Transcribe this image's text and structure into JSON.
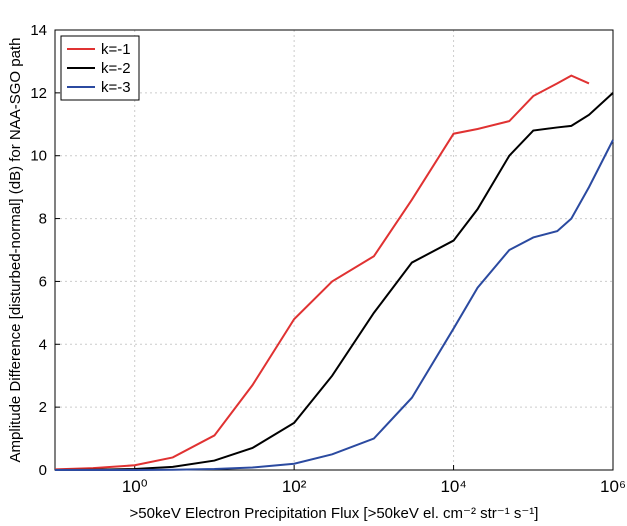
{
  "chart_data": {
    "type": "line",
    "xlabel": ">50keV Electron Precipitation Flux [>50keV el. cm⁻² str⁻¹ s⁻¹]",
    "ylabel": "Amplitude Difference [disturbed-normal] (dB) for NAA-SGO path",
    "x": [
      0.1,
      0.3,
      1,
      3,
      10,
      30,
      100,
      300,
      1000,
      3000,
      10000,
      20000,
      50000,
      100000,
      200000,
      300000,
      500000,
      1000000
    ],
    "series": [
      {
        "name": "k=-1",
        "color": "#e03232",
        "values": [
          0.02,
          0.06,
          0.15,
          0.4,
          1.1,
          2.7,
          4.8,
          6.0,
          6.8,
          8.6,
          10.7,
          10.85,
          11.1,
          11.9,
          12.3,
          12.55,
          12.3,
          null
        ]
      },
      {
        "name": "k=-2",
        "color": "#000000",
        "values": [
          0,
          0.01,
          0.03,
          0.1,
          0.3,
          0.7,
          1.5,
          3.0,
          5.0,
          6.6,
          7.3,
          8.3,
          10.0,
          10.8,
          10.9,
          10.95,
          11.3,
          12.0
        ]
      },
      {
        "name": "k=-3",
        "color": "#2b4aa0",
        "values": [
          0,
          0,
          0,
          0.01,
          0.03,
          0.08,
          0.2,
          0.5,
          1.0,
          2.3,
          4.5,
          5.8,
          7.0,
          7.4,
          7.6,
          8.0,
          9.0,
          10.5
        ]
      }
    ],
    "xscale": "log",
    "xlim": [
      0.1,
      1000000
    ],
    "xticks": [
      {
        "value": 1,
        "label": "10⁰"
      },
      {
        "value": 100,
        "label": "10²"
      },
      {
        "value": 10000,
        "label": "10⁴"
      },
      {
        "value": 1000000,
        "label": "10⁶"
      }
    ],
    "ylim": [
      0,
      14
    ],
    "yticks": [
      0,
      2,
      4,
      6,
      8,
      10,
      12,
      14
    ],
    "grid": true,
    "legend": "upper-left"
  }
}
